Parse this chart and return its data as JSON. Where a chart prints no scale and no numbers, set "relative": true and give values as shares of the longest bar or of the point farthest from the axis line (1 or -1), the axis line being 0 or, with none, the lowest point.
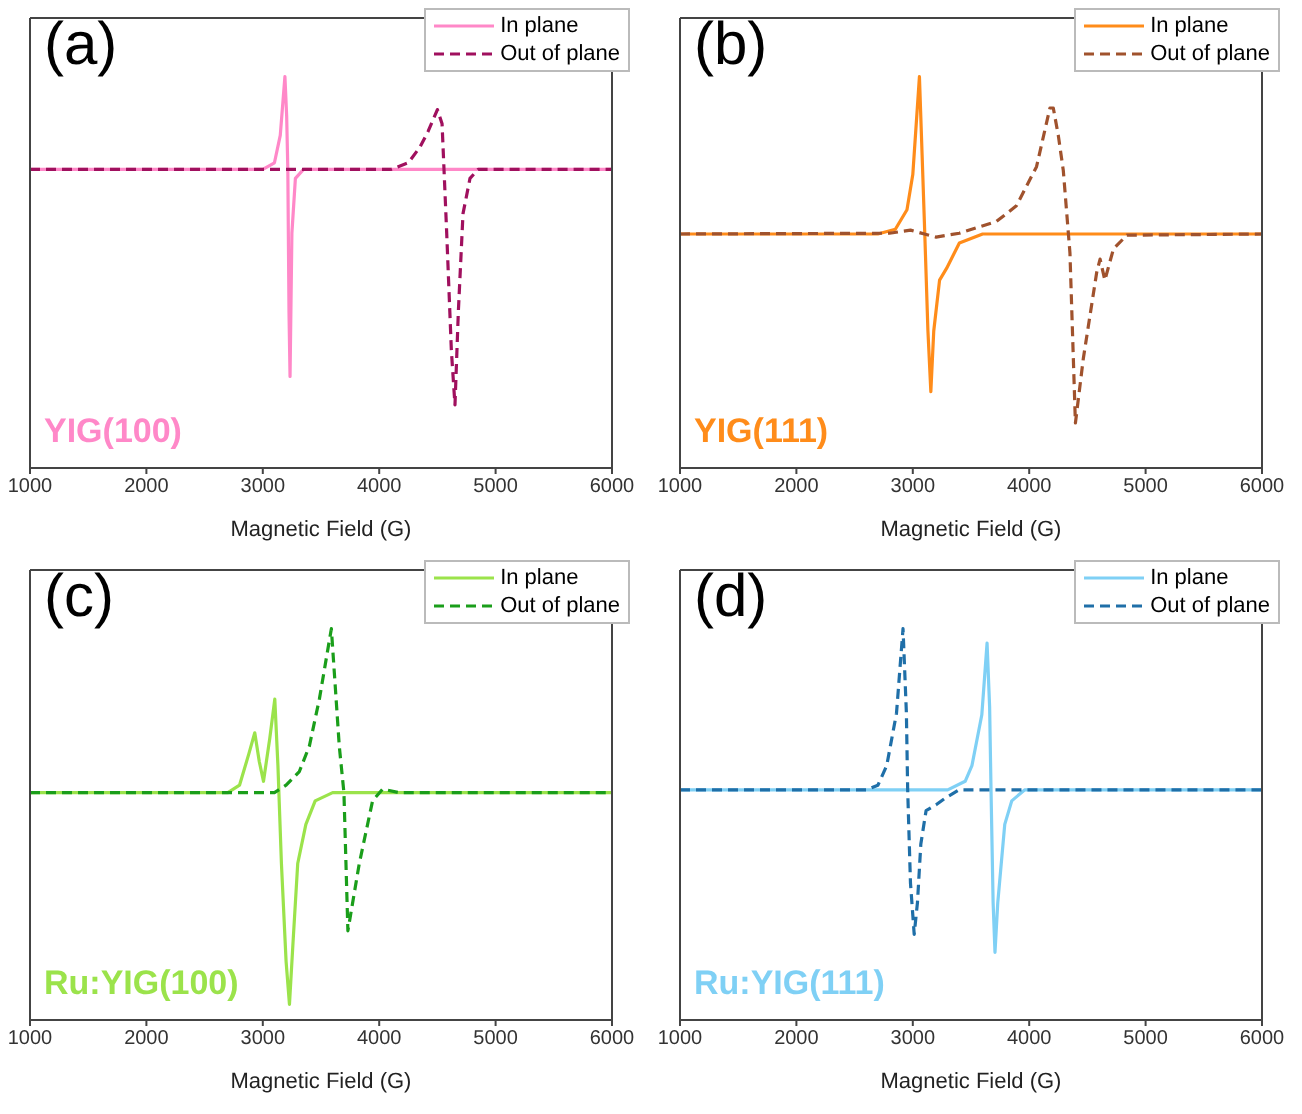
{
  "chart_data": [
    {
      "type": "line",
      "title": "(a)",
      "xlabel": "Magnetic Field (G)",
      "annotations": [
        "YIG(100)"
      ],
      "relative": true,
      "xlim": [
        1000,
        6000
      ],
      "xticks": [
        1000,
        2000,
        3000,
        4000,
        5000,
        6000
      ],
      "legend": "top right",
      "series": [
        {
          "name": "In plane",
          "color": "#ff88c8",
          "line_style": "solid",
          "x": [
            1000,
            3000,
            3100,
            3150,
            3190,
            3205,
            3215,
            3225,
            3234,
            3250,
            3280,
            3350,
            6000
          ],
          "values": [
            0.763,
            0.763,
            0.78,
            0.85,
            1.0,
            0.9,
            0.763,
            0.4,
            0.234,
            0.6,
            0.74,
            0.763,
            0.763
          ]
        },
        {
          "name": "Out of plane",
          "color": "#a0105e",
          "line_style": "dashed",
          "x": [
            1000,
            4100,
            4250,
            4350,
            4420,
            4500,
            4540,
            4580,
            4620,
            4651,
            4680,
            4720,
            4780,
            4850,
            6000
          ],
          "values": [
            0.763,
            0.763,
            0.78,
            0.82,
            0.86,
            0.916,
            0.88,
            0.6,
            0.3,
            0.161,
            0.4,
            0.65,
            0.74,
            0.763,
            0.763
          ]
        }
      ]
    },
    {
      "type": "line",
      "title": "(b)",
      "xlabel": "Magnetic Field (G)",
      "annotations": [
        "YIG(111)"
      ],
      "relative": true,
      "xlim": [
        1000,
        6000
      ],
      "xticks": [
        1000,
        2000,
        3000,
        4000,
        5000,
        6000
      ],
      "legend": "top right",
      "series": [
        {
          "name": "In plane",
          "color": "#ff8c1a",
          "line_style": "solid",
          "x": [
            1000,
            2700,
            2850,
            2950,
            3000,
            3057,
            3080,
            3103,
            3130,
            3155,
            3180,
            3230,
            3290,
            3400,
            3600,
            6000
          ],
          "values": [
            0.598,
            0.598,
            0.61,
            0.66,
            0.75,
            1.0,
            0.8,
            0.598,
            0.35,
            0.195,
            0.35,
            0.48,
            0.51,
            0.575,
            0.598,
            0.598
          ]
        },
        {
          "name": "Out of plane",
          "color": "#a0522d",
          "line_style": "dashed",
          "x": [
            1000,
            2800,
            2980,
            3100,
            3200,
            3400,
            3718,
            3890,
            4063,
            4178,
            4207,
            4250,
            4293,
            4350,
            4397,
            4465,
            4580,
            4609,
            4650,
            4724,
            4839,
            6000
          ],
          "values": [
            0.598,
            0.6,
            0.608,
            0.598,
            0.59,
            0.6,
            0.63,
            0.67,
            0.77,
            0.92,
            0.92,
            0.85,
            0.76,
            0.55,
            0.115,
            0.28,
            0.5,
            0.534,
            0.48,
            0.56,
            0.595,
            0.598
          ]
        }
      ]
    },
    {
      "type": "line",
      "title": "(c)",
      "xlabel": "Magnetic Field (G)",
      "annotations": [
        "Ru:YIG(100)"
      ],
      "relative": true,
      "xlim": [
        1000,
        6000
      ],
      "xticks": [
        1000,
        2000,
        3000,
        4000,
        5000,
        6000
      ],
      "legend": "top right",
      "series": [
        {
          "name": "In plane",
          "color": "#9be34b",
          "line_style": "solid",
          "x": [
            1000,
            2700,
            2800,
            2880,
            2931,
            2970,
            3006,
            3060,
            3103,
            3130,
            3160,
            3200,
            3229,
            3260,
            3300,
            3370,
            3450,
            3600,
            6000
          ],
          "values": [
            0.581,
            0.581,
            0.6,
            0.68,
            0.734,
            0.66,
            0.61,
            0.72,
            0.82,
            0.65,
            0.4,
            0.15,
            0.04,
            0.2,
            0.4,
            0.5,
            0.56,
            0.581,
            0.581
          ]
        },
        {
          "name": "Out of plane",
          "color": "#1a9e1a",
          "line_style": "dashed",
          "x": [
            1000,
            3100,
            3200,
            3314,
            3400,
            3486,
            3589,
            3657,
            3697,
            3731,
            3829,
            3943,
            4029,
            4171,
            6000
          ],
          "values": [
            0.581,
            0.581,
            0.6,
            0.635,
            0.7,
            0.82,
            1.0,
            0.7,
            0.581,
            0.228,
            0.4,
            0.56,
            0.59,
            0.581,
            0.581
          ]
        }
      ]
    },
    {
      "type": "line",
      "title": "(d)",
      "xlabel": "Magnetic Field (G)",
      "annotations": [
        "Ru:YIG(111)"
      ],
      "relative": true,
      "xlim": [
        1000,
        6000
      ],
      "xticks": [
        1000,
        2000,
        3000,
        4000,
        5000,
        6000
      ],
      "legend": "top right",
      "series": [
        {
          "name": "In plane",
          "color": "#7fd0f5",
          "line_style": "solid",
          "x": [
            1000,
            3300,
            3450,
            3508,
            3593,
            3638,
            3660,
            3672,
            3690,
            3706,
            3730,
            3790,
            3850,
            3960,
            6000
          ],
          "values": [
            0.588,
            0.588,
            0.61,
            0.65,
            0.78,
            0.963,
            0.8,
            0.588,
            0.3,
            0.173,
            0.3,
            0.5,
            0.56,
            0.588,
            0.588
          ]
        },
        {
          "name": "Out of plane",
          "color": "#1f6fa8",
          "line_style": "dashed",
          "x": [
            1000,
            2600,
            2700,
            2776,
            2860,
            2916,
            2945,
            2956,
            2980,
            3012,
            3040,
            3069,
            3114,
            3200,
            3283,
            3396,
            6000
          ],
          "values": [
            0.588,
            0.588,
            0.6,
            0.65,
            0.784,
            1.0,
            0.784,
            0.588,
            0.35,
            0.219,
            0.3,
            0.45,
            0.535,
            0.55,
            0.568,
            0.588,
            0.588
          ]
        }
      ]
    }
  ]
}
